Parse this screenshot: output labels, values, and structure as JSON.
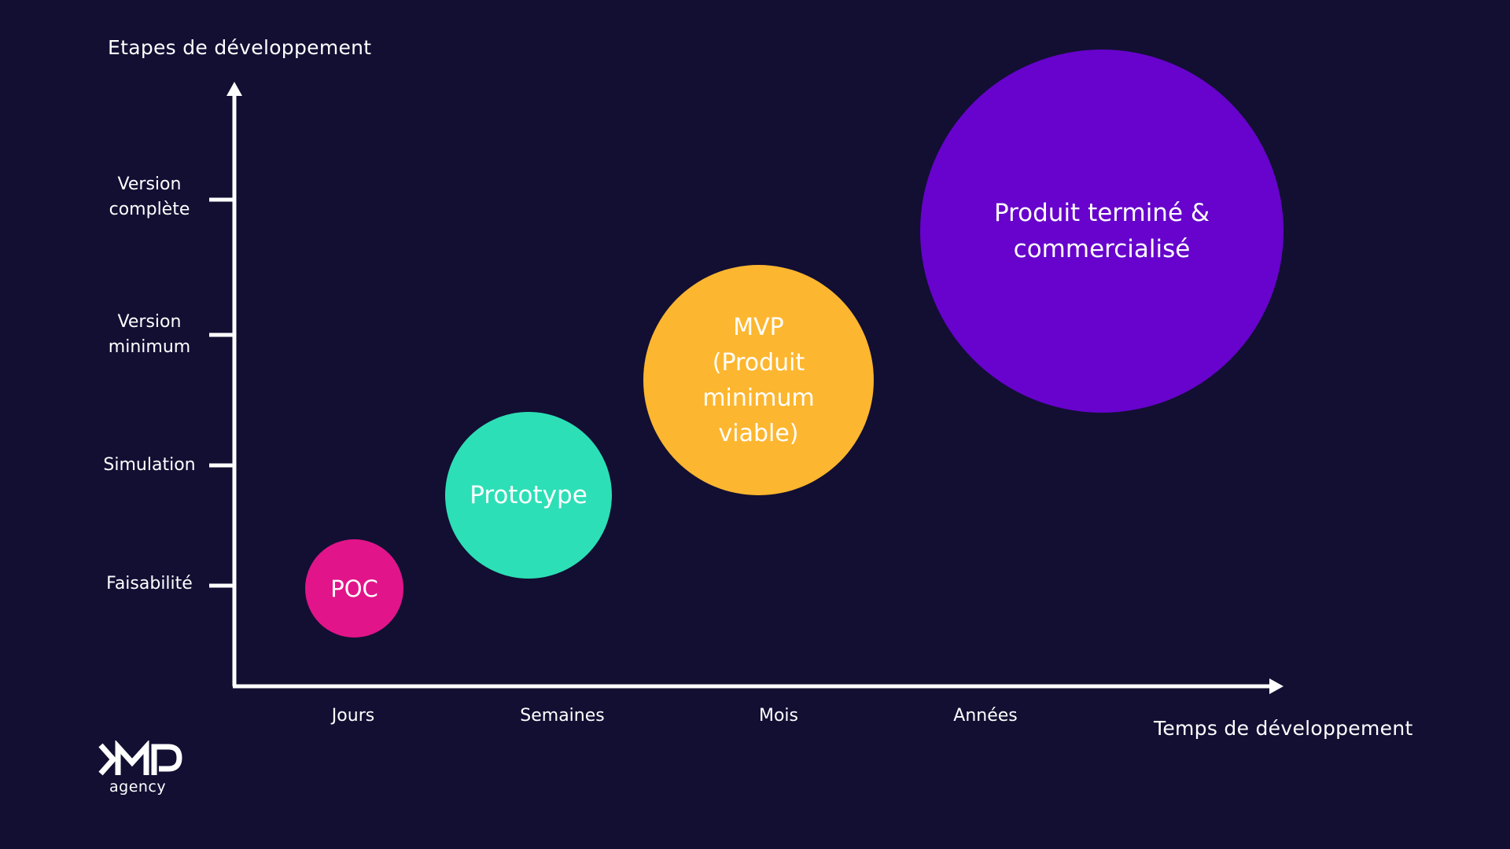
{
  "axes": {
    "y_title": "Etapes de développement",
    "x_title": "Temps de développement"
  },
  "y_ticks": [
    {
      "label": "Version\ncomplète"
    },
    {
      "label": "Version\nminimum"
    },
    {
      "label": "Simulation"
    },
    {
      "label": "Faisabilité"
    }
  ],
  "x_ticks": [
    {
      "label": "Jours"
    },
    {
      "label": "Semaines"
    },
    {
      "label": "Mois"
    },
    {
      "label": "Années"
    }
  ],
  "stages": [
    {
      "label": "POC",
      "color": "#e2148a"
    },
    {
      "label": "Prototype",
      "color": "#2ddfb6"
    },
    {
      "label": "MVP\n(Produit\nminimum\nviable)",
      "color": "#fdb62f"
    },
    {
      "label": "Produit terminé &\ncommercialisé",
      "color": "#6703cc"
    }
  ],
  "logo": {
    "mark": "KMP",
    "sub": "agency"
  },
  "colors": {
    "background": "#120f33",
    "axis": "#ffffff"
  }
}
